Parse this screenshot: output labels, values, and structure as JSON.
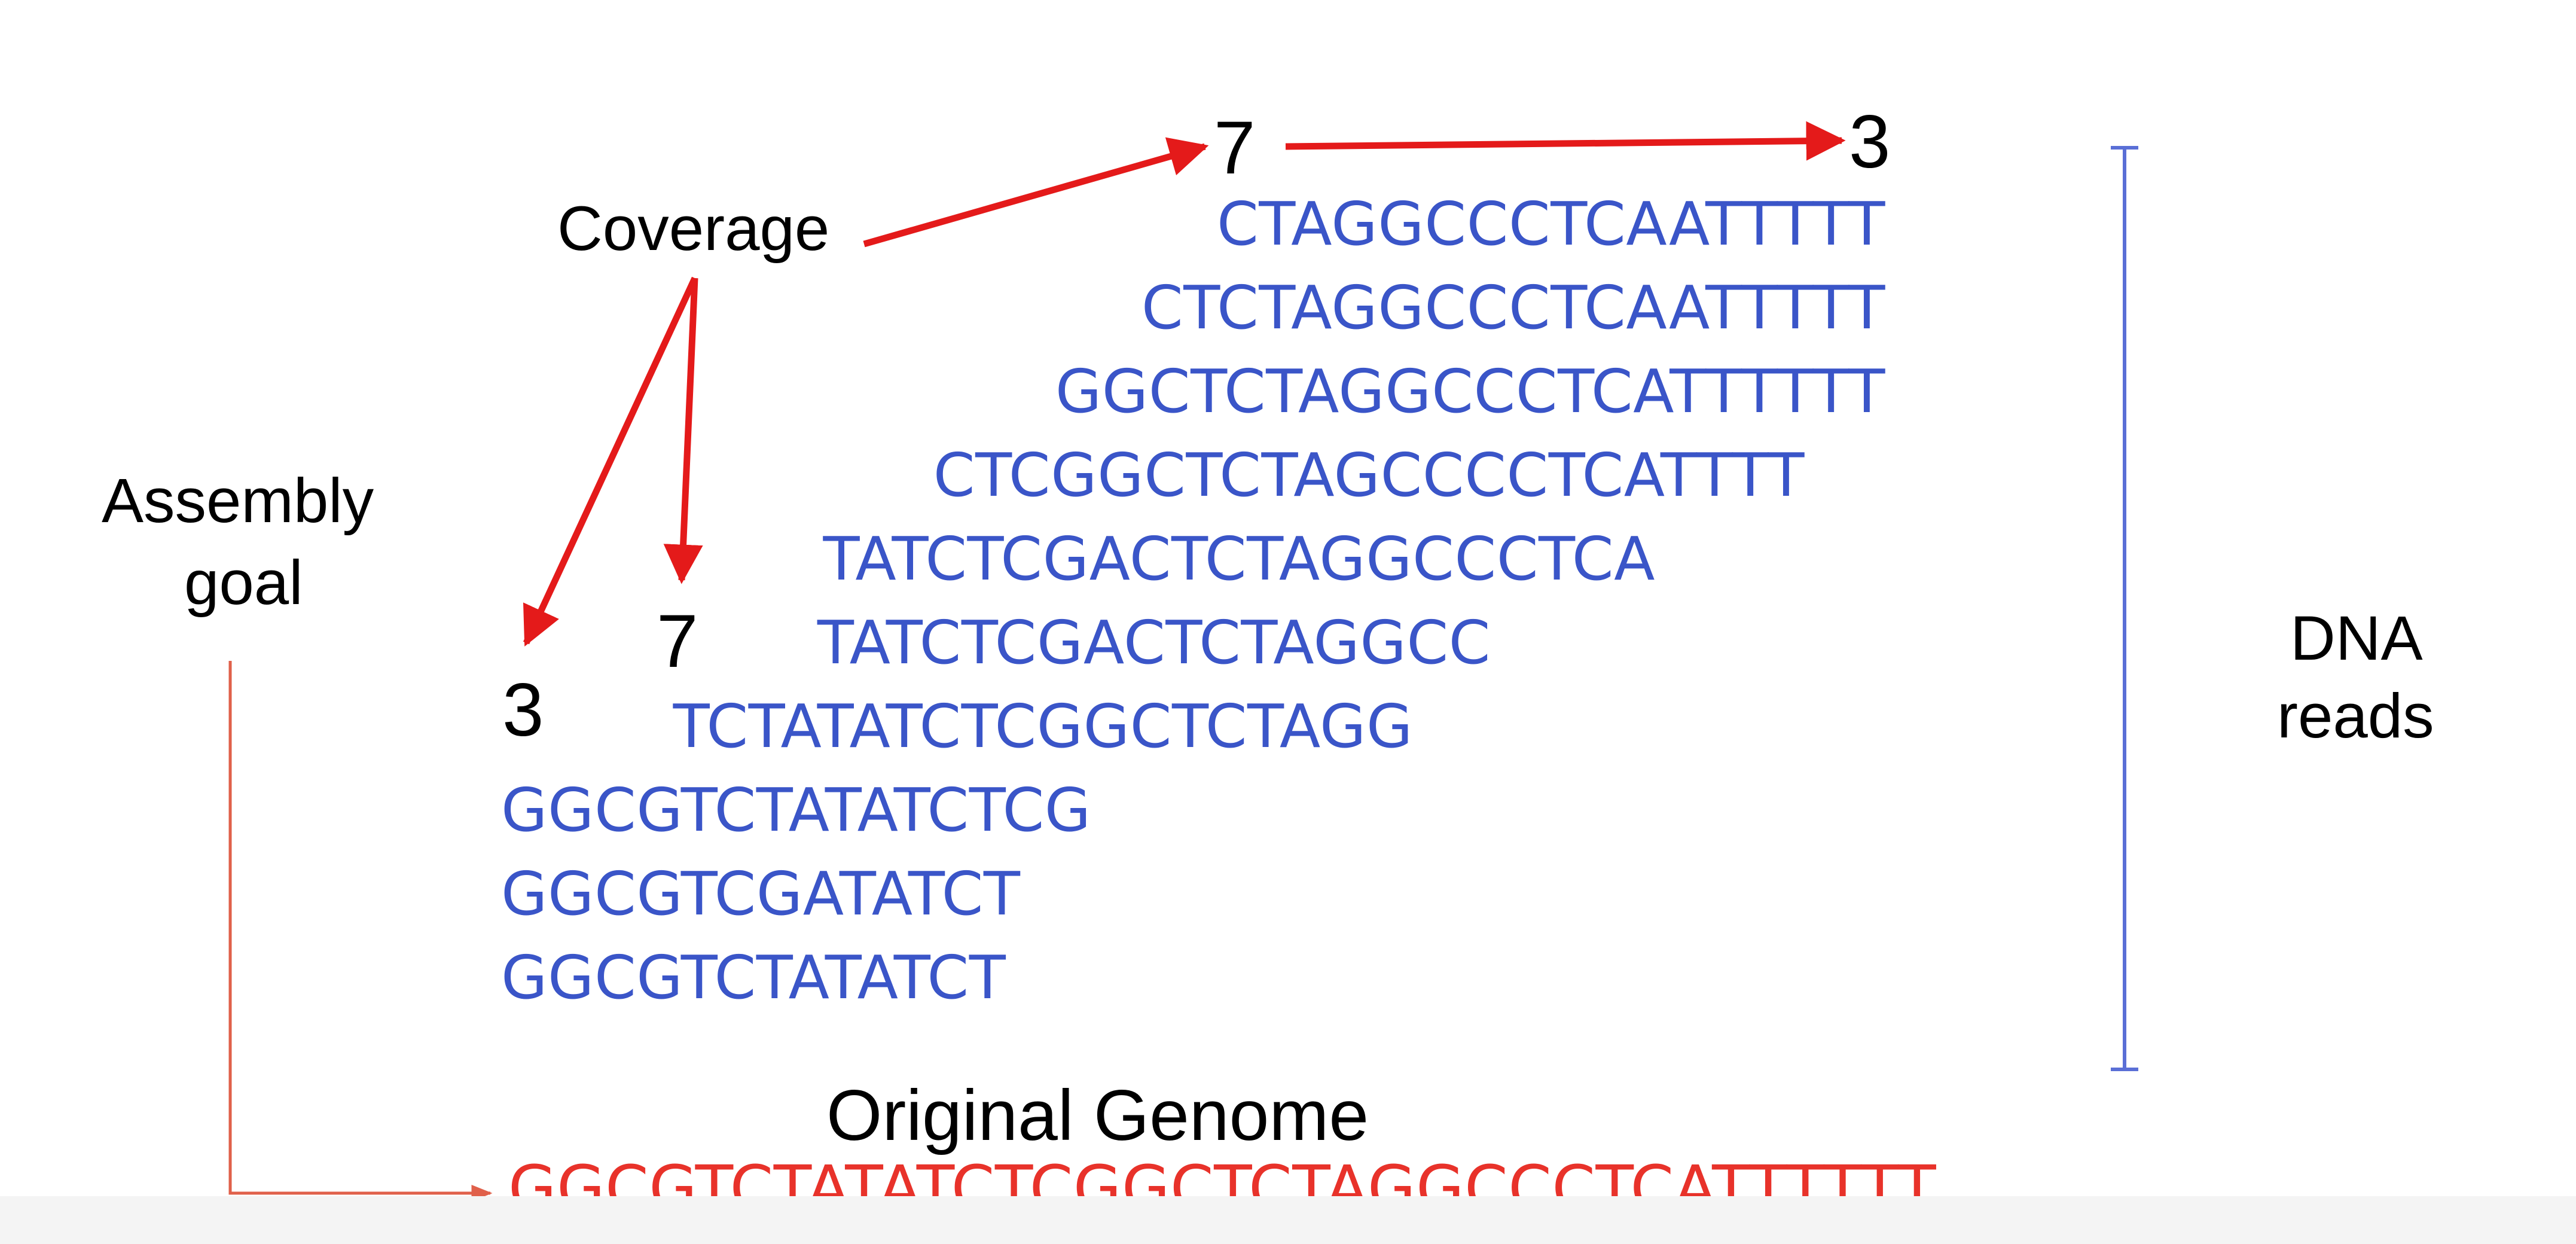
{
  "labels": {
    "coverage": "Coverage",
    "assembly_goal_line1": "Assembly",
    "assembly_goal_line2": "goal",
    "dna_reads_line1": "DNA",
    "dna_reads_line2": "reads",
    "original_genome": "Original Genome"
  },
  "coverage_values": {
    "top_left": "7",
    "top_right": "3",
    "left_low": "3",
    "left_high": "7"
  },
  "reads": [
    "CTAGGCCCTCAATTTTT",
    "CTCTAGGCCCTCAATTTTT",
    "GGCTCTAGGCCCTCATTTTTT",
    "CTCGGCTCTAGCCCCTCATTTT",
    "TATCTCGACTCTAGGCCCTCA",
    "TATCTCGACTCTAGGCC",
    "TCTATATCTCGGCTCTAGG",
    "GGCGTCTATATCTCG",
    "GGCGTCGATATCT",
    "GGCGTCTATATCT"
  ],
  "genome": "GGCGTCTATATCTCGGCTCTAGGCCCTCATTTTTT",
  "colors": {
    "read_text": "#3a55c8",
    "genome_text": "#e8322a",
    "arrow": "#e41a1a",
    "bracket": "#5a6fd6",
    "goal_line": "#e0604a"
  },
  "icons": {
    "read_bracket": "vertical-bracket",
    "goal_connector": "elbow-arrow"
  }
}
